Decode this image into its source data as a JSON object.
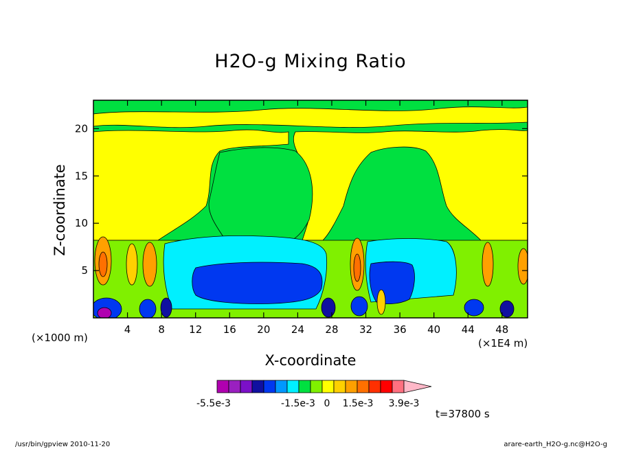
{
  "chart_data": {
    "type": "heatmap",
    "title": "H2O-g Mixing Ratio",
    "xlabel": "X-coordinate",
    "ylabel": "Z-coordinate",
    "x_unit_left": "(×1000 m)",
    "x_unit_right": "(×1E4 m)",
    "xlim": [
      0,
      51
    ],
    "ylim": [
      0,
      23
    ],
    "x_ticks": [
      4,
      8,
      12,
      16,
      20,
      24,
      28,
      32,
      36,
      40,
      44,
      48
    ],
    "y_ticks": [
      5,
      10,
      15,
      20
    ],
    "colorbar": {
      "colors": [
        "#b000b0",
        "#9a20c0",
        "#7b10c8",
        "#1010a0",
        "#0038f0",
        "#0098ff",
        "#00f0ff",
        "#00e040",
        "#80f000",
        "#ffff00",
        "#ffd000",
        "#ffa000",
        "#ff7000",
        "#ff3000",
        "#ff0000",
        "#ff7080",
        "#ffb8c8"
      ],
      "tick_labels": [
        "-5.5e-3",
        "-1.5e-3",
        "0",
        "1.5e-3",
        "3.9e-3"
      ]
    },
    "time_label": "t=37800 s",
    "footer_left": "/usr/bin/gpview   2010-11-20",
    "footer_right": "arare-earth_H2O-g.nc@H2O-g"
  }
}
